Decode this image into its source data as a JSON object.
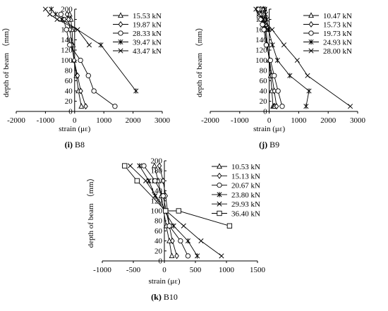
{
  "chart_data": [
    {
      "id": "B8",
      "type": "line",
      "caption": "(i) B8",
      "caption_letter": "(i)",
      "caption_name": "B8",
      "xlabel": "strain (με)",
      "ylabel": "depth of beam （mm）",
      "xlim": [
        -2000,
        3000
      ],
      "xticks": [
        -2000,
        -1000,
        0,
        1000,
        2000,
        3000
      ],
      "ylim": [
        0,
        200
      ],
      "yticks": [
        0,
        20,
        40,
        60,
        80,
        100,
        120,
        140,
        160,
        180,
        200
      ],
      "grid": false,
      "legend": "top-right",
      "series": [
        {
          "name": "15.53 kN",
          "marker": "triangle",
          "x": [
            -170,
            -130,
            -90,
            -60,
            -20,
            60,
            130,
            230
          ],
          "y": [
            190,
            180,
            160,
            130,
            100,
            70,
            40,
            10
          ]
        },
        {
          "name": "19.87 kN",
          "marker": "diamond",
          "x": [
            -260,
            -210,
            -160,
            -100,
            -20,
            100,
            210,
            380
          ],
          "y": [
            190,
            180,
            160,
            130,
            100,
            70,
            40,
            10
          ]
        },
        {
          "name": "28.33 kN",
          "marker": "circle",
          "x": [
            -470,
            -380,
            -280,
            -170,
            200,
            470,
            660,
            1380
          ],
          "y": [
            190,
            180,
            160,
            130,
            100,
            70,
            40,
            10
          ]
        },
        {
          "name": "39.47 kN",
          "marker": "star",
          "x": [
            -800,
            -650,
            -430,
            900,
            2100
          ],
          "y": [
            200,
            190,
            180,
            130,
            40
          ]
        },
        {
          "name": "43.47 kN",
          "marker": "cross",
          "x": [
            -1000,
            -850,
            -600,
            100,
            500
          ],
          "y": [
            200,
            190,
            180,
            160,
            130
          ]
        }
      ]
    },
    {
      "id": "B9",
      "type": "line",
      "caption": "(j) B9",
      "caption_letter": "(j)",
      "caption_name": "B9",
      "xlabel": "strain (με)",
      "ylabel": "depth of beam （mm）",
      "xlim": [
        -2000,
        3000
      ],
      "xticks": [
        -2000,
        -1000,
        0,
        1000,
        2000,
        3000
      ],
      "ylim": [
        0,
        200
      ],
      "yticks": [
        0,
        20,
        40,
        60,
        80,
        100,
        120,
        140,
        160,
        180,
        200
      ],
      "grid": false,
      "legend": "top-right",
      "series": [
        {
          "name": "10.47 kN",
          "marker": "triangle",
          "x": [
            -200,
            -180,
            -160,
            -130,
            -100,
            -60,
            0,
            50,
            90,
            130,
            160,
            190
          ],
          "y": [
            200,
            190,
            180,
            170,
            160,
            130,
            100,
            70,
            40,
            10,
            10,
            10
          ]
        },
        {
          "name": "15.73 kN",
          "marker": "diamond",
          "x": [
            -300,
            -260,
            -220,
            -180,
            -140,
            -80,
            10,
            90,
            170,
            250
          ],
          "y": [
            200,
            190,
            180,
            170,
            160,
            130,
            100,
            70,
            40,
            10
          ]
        },
        {
          "name": "19.73 kN",
          "marker": "circle",
          "x": [
            -380,
            -330,
            -280,
            -230,
            -180,
            -100,
            40,
            170,
            300,
            440
          ],
          "y": [
            200,
            190,
            180,
            170,
            160,
            130,
            100,
            70,
            40,
            10
          ]
        },
        {
          "name": "24.93 kN",
          "marker": "star",
          "x": [
            -150,
            -120,
            -80,
            -20,
            110,
            280,
            700,
            1350,
            1250
          ],
          "y": [
            200,
            190,
            180,
            160,
            130,
            100,
            70,
            40,
            10
          ]
        },
        {
          "name": "28.00 kN",
          "marker": "cross",
          "x": [
            -450,
            -350,
            -200,
            100,
            500,
            950,
            1300,
            2750
          ],
          "y": [
            200,
            190,
            180,
            160,
            130,
            100,
            70,
            10
          ]
        }
      ]
    },
    {
      "id": "B10",
      "type": "line",
      "caption": "(k) B10",
      "caption_letter": "(k)",
      "caption_name": "B10",
      "xlabel": "strain (με)",
      "ylabel": "depth of beam （mm）",
      "xlim": [
        -1000,
        1500
      ],
      "xticks": [
        -1000,
        -500,
        0,
        500,
        1000,
        1500
      ],
      "ylim": [
        0,
        200
      ],
      "yticks": [
        0,
        20,
        40,
        60,
        80,
        100,
        120,
        140,
        160,
        180,
        200
      ],
      "grid": false,
      "legend": "top-right",
      "series": [
        {
          "name": "10.53 kN",
          "marker": "triangle",
          "x": [
            -160,
            -100,
            -50,
            30,
            80,
            120
          ],
          "y": [
            190,
            160,
            130,
            70,
            40,
            10
          ]
        },
        {
          "name": "15.13 kN",
          "marker": "diamond",
          "x": [
            -80,
            -20,
            20,
            80,
            130,
            200
          ],
          "y": [
            190,
            160,
            130,
            70,
            40,
            10
          ]
        },
        {
          "name": "20.67 kN",
          "marker": "circle",
          "x": [
            -330,
            -150,
            -20,
            80,
            260,
            380
          ],
          "y": [
            190,
            160,
            130,
            70,
            40,
            10
          ]
        },
        {
          "name": "23.80 kN",
          "marker": "star",
          "x": [
            -400,
            -250,
            -150,
            150,
            380,
            530
          ],
          "y": [
            190,
            160,
            130,
            70,
            40,
            10
          ]
        },
        {
          "name": "29.93 kN",
          "marker": "cross",
          "x": [
            -550,
            -300,
            30,
            310,
            590,
            920
          ],
          "y": [
            190,
            160,
            100,
            70,
            40,
            10
          ]
        },
        {
          "name": "36.40 kN",
          "marker": "square",
          "x": [
            -640,
            -440,
            20,
            230,
            1050
          ],
          "y": [
            190,
            160,
            100,
            100,
            70
          ]
        }
      ]
    }
  ]
}
